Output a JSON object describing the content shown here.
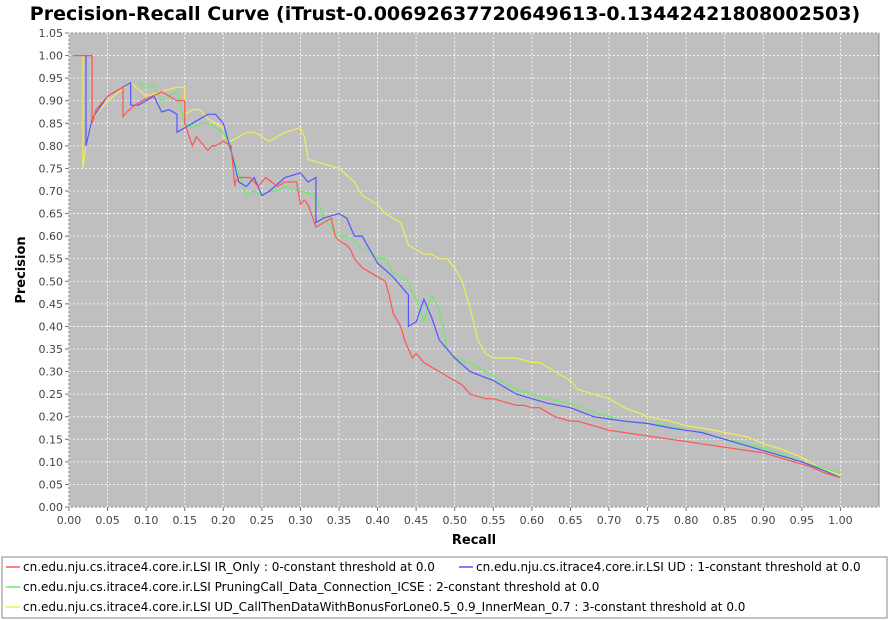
{
  "chart_data": {
    "type": "line",
    "title": "Precision-Recall Curve (iTrust-0.00692637720649613-0.13442421808002503)",
    "xlabel": "Recall",
    "ylabel": "Precision",
    "xlim": [
      0.0,
      1.05
    ],
    "ylim": [
      0.0,
      1.05
    ],
    "x_ticks": [
      "0.00",
      "0.05",
      "0.10",
      "0.15",
      "0.20",
      "0.25",
      "0.30",
      "0.35",
      "0.40",
      "0.45",
      "0.50",
      "0.55",
      "0.60",
      "0.65",
      "0.70",
      "0.75",
      "0.80",
      "0.85",
      "0.90",
      "0.95",
      "1.00"
    ],
    "y_ticks": [
      "0.00",
      "0.05",
      "0.10",
      "0.15",
      "0.20",
      "0.25",
      "0.30",
      "0.35",
      "0.40",
      "0.45",
      "0.50",
      "0.55",
      "0.60",
      "0.65",
      "0.70",
      "0.75",
      "0.80",
      "0.85",
      "0.90",
      "0.95",
      "1.00",
      "1.05"
    ],
    "grid": true,
    "legend_position": "bottom",
    "plot_background": "#bfbfbf",
    "series": [
      {
        "name": "cn.edu.nju.cs.itrace4.core.ir.LSI IR_Only : 0-constant threshold at 0.0",
        "color": "#ff5555",
        "x": [
          0.005,
          0.03,
          0.03,
          0.035,
          0.05,
          0.07,
          0.07,
          0.075,
          0.085,
          0.1,
          0.115,
          0.12,
          0.14,
          0.15,
          0.15,
          0.16,
          0.165,
          0.17,
          0.175,
          0.18,
          0.185,
          0.19,
          0.2,
          0.21,
          0.215,
          0.215,
          0.22,
          0.235,
          0.245,
          0.255,
          0.27,
          0.28,
          0.295,
          0.3,
          0.305,
          0.31,
          0.32,
          0.33,
          0.34,
          0.345,
          0.35,
          0.36,
          0.365,
          0.37,
          0.38,
          0.39,
          0.4,
          0.41,
          0.415,
          0.42,
          0.43,
          0.435,
          0.44,
          0.445,
          0.45,
          0.46,
          0.47,
          0.48,
          0.49,
          0.5,
          0.51,
          0.52,
          0.53,
          0.54,
          0.55,
          0.56,
          0.57,
          0.58,
          0.59,
          0.6,
          0.61,
          0.62,
          0.63,
          0.64,
          0.65,
          0.66,
          0.67,
          0.68,
          0.69,
          0.7,
          0.72,
          0.74,
          0.76,
          0.78,
          0.8,
          0.82,
          0.84,
          0.86,
          0.88,
          0.9,
          0.92,
          0.94,
          0.96,
          0.98,
          1.0
        ],
        "y": [
          1.0,
          1.0,
          0.85,
          0.88,
          0.91,
          0.93,
          0.865,
          0.875,
          0.89,
          0.905,
          0.915,
          0.92,
          0.9,
          0.9,
          0.85,
          0.8,
          0.82,
          0.81,
          0.8,
          0.79,
          0.8,
          0.8,
          0.81,
          0.8,
          0.71,
          0.72,
          0.73,
          0.73,
          0.71,
          0.73,
          0.71,
          0.72,
          0.72,
          0.67,
          0.68,
          0.67,
          0.62,
          0.63,
          0.64,
          0.6,
          0.59,
          0.58,
          0.57,
          0.55,
          0.53,
          0.52,
          0.51,
          0.5,
          0.47,
          0.43,
          0.4,
          0.37,
          0.35,
          0.33,
          0.34,
          0.32,
          0.31,
          0.3,
          0.29,
          0.28,
          0.27,
          0.25,
          0.245,
          0.24,
          0.24,
          0.235,
          0.23,
          0.225,
          0.225,
          0.22,
          0.22,
          0.21,
          0.2,
          0.195,
          0.19,
          0.19,
          0.185,
          0.18,
          0.175,
          0.17,
          0.165,
          0.16,
          0.155,
          0.15,
          0.145,
          0.14,
          0.135,
          0.13,
          0.125,
          0.12,
          0.11,
          0.1,
          0.09,
          0.075,
          0.065
        ]
      },
      {
        "name": "cn.edu.nju.cs.itrace4.core.ir.LSI UD : 1-constant threshold at 0.0",
        "color": "#5555ff",
        "x": [
          0.022,
          0.022,
          0.03,
          0.05,
          0.07,
          0.08,
          0.08,
          0.09,
          0.1,
          0.11,
          0.12,
          0.13,
          0.14,
          0.14,
          0.15,
          0.16,
          0.17,
          0.18,
          0.19,
          0.2,
          0.21,
          0.22,
          0.23,
          0.24,
          0.25,
          0.26,
          0.28,
          0.3,
          0.31,
          0.32,
          0.32,
          0.33,
          0.35,
          0.36,
          0.37,
          0.38,
          0.4,
          0.42,
          0.43,
          0.44,
          0.44,
          0.45,
          0.46,
          0.47,
          0.48,
          0.5,
          0.52,
          0.55,
          0.58,
          0.6,
          0.62,
          0.65,
          0.68,
          0.7,
          0.72,
          0.75,
          0.78,
          0.8,
          0.82,
          0.85,
          0.88,
          0.9,
          0.92,
          0.95,
          0.98,
          1.0
        ],
        "y": [
          1.0,
          0.8,
          0.86,
          0.91,
          0.93,
          0.94,
          0.89,
          0.89,
          0.9,
          0.91,
          0.875,
          0.88,
          0.87,
          0.83,
          0.84,
          0.85,
          0.86,
          0.87,
          0.87,
          0.85,
          0.79,
          0.72,
          0.71,
          0.73,
          0.69,
          0.7,
          0.73,
          0.74,
          0.72,
          0.73,
          0.63,
          0.64,
          0.65,
          0.64,
          0.6,
          0.6,
          0.54,
          0.51,
          0.49,
          0.47,
          0.4,
          0.41,
          0.46,
          0.42,
          0.37,
          0.33,
          0.3,
          0.28,
          0.25,
          0.24,
          0.23,
          0.22,
          0.2,
          0.195,
          0.19,
          0.185,
          0.175,
          0.17,
          0.165,
          0.15,
          0.135,
          0.125,
          0.115,
          0.1,
          0.08,
          0.065
        ]
      },
      {
        "name": "cn.edu.nju.cs.itrace4.core.ir.LSI PruningCall_Data_Connection_ICSE : 2-constant threshold at 0.0",
        "color": "#66ee66",
        "x": [
          0.09,
          0.1,
          0.11,
          0.12,
          0.13,
          0.14,
          0.15,
          0.16,
          0.17,
          0.18,
          0.19,
          0.2,
          0.21,
          0.22,
          0.23,
          0.24,
          0.25,
          0.26,
          0.27,
          0.28,
          0.3,
          0.32,
          0.33,
          0.34,
          0.35,
          0.36,
          0.37,
          0.38,
          0.39,
          0.4,
          0.41,
          0.42,
          0.43,
          0.44,
          0.45,
          0.46,
          0.47,
          0.48,
          0.49,
          0.5,
          0.52,
          0.54,
          0.56,
          0.58,
          0.6,
          0.62,
          0.65,
          0.68,
          0.7,
          0.72,
          0.75,
          0.78,
          0.8,
          0.82,
          0.85,
          0.88,
          0.9,
          0.92,
          0.95,
          0.97,
          1.0
        ],
        "y": [
          0.94,
          0.93,
          0.935,
          0.9,
          0.91,
          0.92,
          0.85,
          0.84,
          0.85,
          0.85,
          0.84,
          0.83,
          0.79,
          0.74,
          0.69,
          0.7,
          0.69,
          0.7,
          0.7,
          0.71,
          0.7,
          0.69,
          0.64,
          0.62,
          0.6,
          0.6,
          0.59,
          0.57,
          0.57,
          0.55,
          0.55,
          0.52,
          0.51,
          0.5,
          0.46,
          0.41,
          0.47,
          0.44,
          0.35,
          0.33,
          0.32,
          0.3,
          0.28,
          0.26,
          0.25,
          0.24,
          0.23,
          0.21,
          0.2,
          0.19,
          0.185,
          0.18,
          0.17,
          0.165,
          0.15,
          0.14,
          0.13,
          0.12,
          0.1,
          0.09,
          0.075
        ]
      },
      {
        "name": "cn.edu.nju.cs.itrace4.core.ir.LSI UD_CallThenDataWithBonusForLone0.5_0.9_InnerMean_0.7 : 3-constant threshold at 0.0",
        "color": "#eeee55",
        "x": [
          0.018,
          0.018,
          0.022,
          0.03,
          0.05,
          0.08,
          0.1,
          0.12,
          0.14,
          0.15,
          0.15,
          0.16,
          0.17,
          0.18,
          0.19,
          0.2,
          0.2,
          0.21,
          0.22,
          0.23,
          0.24,
          0.25,
          0.26,
          0.28,
          0.3,
          0.305,
          0.31,
          0.33,
          0.35,
          0.37,
          0.38,
          0.39,
          0.4,
          0.41,
          0.42,
          0.43,
          0.44,
          0.45,
          0.46,
          0.47,
          0.48,
          0.49,
          0.5,
          0.51,
          0.52,
          0.53,
          0.54,
          0.55,
          0.56,
          0.58,
          0.6,
          0.61,
          0.62,
          0.63,
          0.64,
          0.65,
          0.66,
          0.68,
          0.7,
          0.72,
          0.75,
          0.78,
          0.8,
          0.82,
          0.85,
          0.88,
          0.9,
          0.92,
          0.95,
          0.97,
          1.0
        ],
        "y": [
          1.0,
          0.75,
          0.8,
          0.86,
          0.9,
          0.94,
          0.91,
          0.92,
          0.93,
          0.93,
          0.87,
          0.88,
          0.88,
          0.86,
          0.85,
          0.84,
          0.82,
          0.81,
          0.82,
          0.83,
          0.83,
          0.82,
          0.81,
          0.83,
          0.84,
          0.82,
          0.77,
          0.76,
          0.75,
          0.72,
          0.69,
          0.68,
          0.67,
          0.65,
          0.64,
          0.63,
          0.58,
          0.57,
          0.56,
          0.56,
          0.55,
          0.55,
          0.53,
          0.5,
          0.44,
          0.37,
          0.34,
          0.33,
          0.33,
          0.33,
          0.32,
          0.32,
          0.31,
          0.3,
          0.29,
          0.28,
          0.26,
          0.25,
          0.24,
          0.22,
          0.2,
          0.19,
          0.18,
          0.175,
          0.165,
          0.155,
          0.14,
          0.13,
          0.11,
          0.09,
          0.07
        ]
      }
    ]
  }
}
